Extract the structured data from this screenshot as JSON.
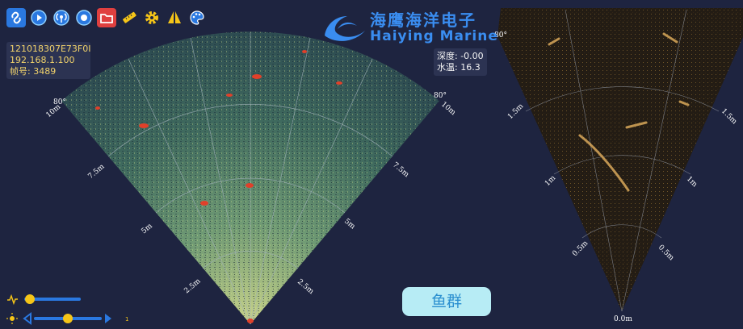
{
  "toolbar": {
    "icons": [
      "link-icon",
      "play-icon",
      "broadcast-icon",
      "record-icon",
      "folder-icon",
      "ruler-icon",
      "gear-icon",
      "sail-icon",
      "palette-icon"
    ]
  },
  "device": {
    "serial": "121018307E73F0I",
    "ip": "192.168.1.100",
    "frame_label": "帧号: 3489"
  },
  "readout": {
    "depth_label": "深度: -0.00",
    "temp_label": "水温: 16.3"
  },
  "brand": {
    "cn": "海鹰海洋电子",
    "en": "Haiying Marine"
  },
  "left_sonar": {
    "angle_left": "80°",
    "angle_right": "80°",
    "ranges": [
      "10m",
      "7.5m",
      "5m",
      "2.5m"
    ]
  },
  "right_sonar": {
    "ranges": [
      "1.5m",
      "1m",
      "0.5m",
      "0.0m"
    ],
    "angle_label": "80°"
  },
  "fish_button": "鱼群",
  "sliders": {
    "gain_level": 0.1,
    "brightness_level": 0.5,
    "brightness_value": "1"
  },
  "colors": {
    "background": "#1e2440",
    "accent": "#3a8df0",
    "info_text": "#f2d36b"
  }
}
